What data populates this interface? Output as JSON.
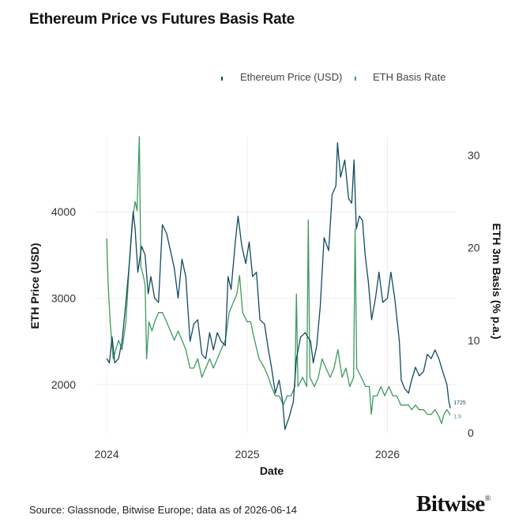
{
  "brand": {
    "name": "Bitwise",
    "mark": "®"
  },
  "source": "Source: Glassnode, Bitwise Europe; data as of 2026-06-14",
  "chart_data": {
    "type": "line",
    "title": "Ethereum Price vs Futures Basis Rate",
    "xlabel": "Date",
    "ylabel_left": "ETH Price (USD)",
    "ylabel_right": "ETH 3m Basis (% p.a.)",
    "x_ticks": [
      "2024",
      "2025",
      "2026"
    ],
    "y_left_ticks": [
      2000,
      3000,
      4000
    ],
    "y_right_ticks": [
      0,
      10,
      20,
      30
    ],
    "y_left_range": [
      1440,
      4870
    ],
    "y_right_range": [
      0,
      32
    ],
    "x_range": [
      "2023-12-01",
      "2026-06-30"
    ],
    "grid": true,
    "legend_position": "top-right",
    "series": [
      {
        "name": "Ethereum Price (USD)",
        "axis": "left",
        "color": "#124a5e",
        "end_label": "1725",
        "points": [
          [
            "2024-01-01",
            2300
          ],
          [
            "2024-01-08",
            2250
          ],
          [
            "2024-01-15",
            2550
          ],
          [
            "2024-01-22",
            2250
          ],
          [
            "2024-02-01",
            2300
          ],
          [
            "2024-02-10",
            2500
          ],
          [
            "2024-02-20",
            2950
          ],
          [
            "2024-03-01",
            3450
          ],
          [
            "2024-03-10",
            4000
          ],
          [
            "2024-03-15",
            3800
          ],
          [
            "2024-03-22",
            3300
          ],
          [
            "2024-04-01",
            3600
          ],
          [
            "2024-04-10",
            3500
          ],
          [
            "2024-04-18",
            3050
          ],
          [
            "2024-04-25",
            3250
          ],
          [
            "2024-05-05",
            3000
          ],
          [
            "2024-05-15",
            2950
          ],
          [
            "2024-05-25",
            3850
          ],
          [
            "2024-06-05",
            3750
          ],
          [
            "2024-06-15",
            3550
          ],
          [
            "2024-06-25",
            3350
          ],
          [
            "2024-07-05",
            3000
          ],
          [
            "2024-07-15",
            3450
          ],
          [
            "2024-07-25",
            3250
          ],
          [
            "2024-08-05",
            2500
          ],
          [
            "2024-08-15",
            2700
          ],
          [
            "2024-08-25",
            2750
          ],
          [
            "2024-09-05",
            2350
          ],
          [
            "2024-09-15",
            2300
          ],
          [
            "2024-09-25",
            2600
          ],
          [
            "2024-10-05",
            2400
          ],
          [
            "2024-10-15",
            2600
          ],
          [
            "2024-10-25",
            2500
          ],
          [
            "2024-11-05",
            2450
          ],
          [
            "2024-11-12",
            3250
          ],
          [
            "2024-11-20",
            3100
          ],
          [
            "2024-12-01",
            3650
          ],
          [
            "2024-12-08",
            3950
          ],
          [
            "2024-12-18",
            3600
          ],
          [
            "2024-12-28",
            3400
          ],
          [
            "2025-01-06",
            3650
          ],
          [
            "2025-01-15",
            3250
          ],
          [
            "2025-01-25",
            3300
          ],
          [
            "2025-02-03",
            2750
          ],
          [
            "2025-02-15",
            2700
          ],
          [
            "2025-02-25",
            2400
          ],
          [
            "2025-03-05",
            2200
          ],
          [
            "2025-03-15",
            1900
          ],
          [
            "2025-03-25",
            2050
          ],
          [
            "2025-04-03",
            1800
          ],
          [
            "2025-04-09",
            1480
          ],
          [
            "2025-04-20",
            1620
          ],
          [
            "2025-05-01",
            1800
          ],
          [
            "2025-05-09",
            2300
          ],
          [
            "2025-05-20",
            2550
          ],
          [
            "2025-06-01",
            2600
          ],
          [
            "2025-06-15",
            2500
          ],
          [
            "2025-06-22",
            2250
          ],
          [
            "2025-07-01",
            2450
          ],
          [
            "2025-07-10",
            2900
          ],
          [
            "2025-07-20",
            3700
          ],
          [
            "2025-08-01",
            3550
          ],
          [
            "2025-08-10",
            4200
          ],
          [
            "2025-08-20",
            4300
          ],
          [
            "2025-08-24",
            4800
          ],
          [
            "2025-09-01",
            4400
          ],
          [
            "2025-09-12",
            4600
          ],
          [
            "2025-09-22",
            4150
          ],
          [
            "2025-09-30",
            4100
          ],
          [
            "2025-10-06",
            4600
          ],
          [
            "2025-10-12",
            3800
          ],
          [
            "2025-10-20",
            3950
          ],
          [
            "2025-10-28",
            3900
          ],
          [
            "2025-11-04",
            3500
          ],
          [
            "2025-11-12",
            3200
          ],
          [
            "2025-11-21",
            2750
          ],
          [
            "2025-12-01",
            3000
          ],
          [
            "2025-12-10",
            3300
          ],
          [
            "2025-12-20",
            2950
          ],
          [
            "2026-01-01",
            3000
          ],
          [
            "2026-01-10",
            3300
          ],
          [
            "2026-01-20",
            3000
          ],
          [
            "2026-02-01",
            2500
          ],
          [
            "2026-02-06",
            2050
          ],
          [
            "2026-02-15",
            1950
          ],
          [
            "2026-02-25",
            1900
          ],
          [
            "2026-03-05",
            2050
          ],
          [
            "2026-03-15",
            2200
          ],
          [
            "2026-03-25",
            2100
          ],
          [
            "2026-04-05",
            2150
          ],
          [
            "2026-04-15",
            2350
          ],
          [
            "2026-04-25",
            2300
          ],
          [
            "2026-05-05",
            2400
          ],
          [
            "2026-05-15",
            2300
          ],
          [
            "2026-05-25",
            2150
          ],
          [
            "2026-06-05",
            2000
          ],
          [
            "2026-06-10",
            1800
          ],
          [
            "2026-06-14",
            1725
          ]
        ]
      },
      {
        "name": "ETH Basis Rate",
        "axis": "right",
        "color": "#3e9a5c",
        "end_label": "1.9",
        "points": [
          [
            "2024-01-01",
            21
          ],
          [
            "2024-01-05",
            16
          ],
          [
            "2024-01-10",
            12
          ],
          [
            "2024-01-18",
            8
          ],
          [
            "2024-01-25",
            9
          ],
          [
            "2024-02-01",
            10
          ],
          [
            "2024-02-10",
            9
          ],
          [
            "2024-02-20",
            12
          ],
          [
            "2024-03-01",
            19
          ],
          [
            "2024-03-08",
            23
          ],
          [
            "2024-03-15",
            25
          ],
          [
            "2024-03-20",
            24
          ],
          [
            "2024-03-26",
            32
          ],
          [
            "2024-03-30",
            18
          ],
          [
            "2024-04-05",
            17
          ],
          [
            "2024-04-10",
            16
          ],
          [
            "2024-04-14",
            8
          ],
          [
            "2024-04-20",
            12
          ],
          [
            "2024-04-28",
            11
          ],
          [
            "2024-05-05",
            12
          ],
          [
            "2024-05-15",
            13
          ],
          [
            "2024-05-25",
            13
          ],
          [
            "2024-06-05",
            12
          ],
          [
            "2024-06-15",
            11
          ],
          [
            "2024-06-25",
            10
          ],
          [
            "2024-07-05",
            11
          ],
          [
            "2024-07-15",
            10
          ],
          [
            "2024-07-25",
            9
          ],
          [
            "2024-08-05",
            7
          ],
          [
            "2024-08-15",
            7
          ],
          [
            "2024-08-25",
            8
          ],
          [
            "2024-09-05",
            6
          ],
          [
            "2024-09-15",
            7
          ],
          [
            "2024-09-25",
            8
          ],
          [
            "2024-10-05",
            7
          ],
          [
            "2024-10-15",
            8
          ],
          [
            "2024-10-25",
            9
          ],
          [
            "2024-11-05",
            10
          ],
          [
            "2024-11-15",
            13
          ],
          [
            "2024-11-25",
            14
          ],
          [
            "2024-12-05",
            15
          ],
          [
            "2024-12-12",
            17
          ],
          [
            "2024-12-20",
            13
          ],
          [
            "2025-01-01",
            12
          ],
          [
            "2025-01-10",
            12
          ],
          [
            "2025-01-20",
            10
          ],
          [
            "2025-02-01",
            8
          ],
          [
            "2025-02-15",
            7
          ],
          [
            "2025-02-25",
            6
          ],
          [
            "2025-03-05",
            5
          ],
          [
            "2025-03-15",
            4
          ],
          [
            "2025-03-25",
            4
          ],
          [
            "2025-04-05",
            3
          ],
          [
            "2025-04-15",
            4
          ],
          [
            "2025-04-25",
            4
          ],
          [
            "2025-05-05",
            5
          ],
          [
            "2025-05-09",
            15
          ],
          [
            "2025-05-13",
            5
          ],
          [
            "2025-05-25",
            6
          ],
          [
            "2025-06-05",
            5
          ],
          [
            "2025-06-09",
            23
          ],
          [
            "2025-06-13",
            6
          ],
          [
            "2025-06-25",
            5
          ],
          [
            "2025-07-05",
            6
          ],
          [
            "2025-07-15",
            8
          ],
          [
            "2025-07-25",
            7
          ],
          [
            "2025-08-05",
            6
          ],
          [
            "2025-08-15",
            7
          ],
          [
            "2025-08-25",
            9
          ],
          [
            "2025-09-05",
            6
          ],
          [
            "2025-09-15",
            7
          ],
          [
            "2025-09-25",
            5
          ],
          [
            "2025-10-05",
            6
          ],
          [
            "2025-10-09",
            22
          ],
          [
            "2025-10-13",
            7
          ],
          [
            "2025-10-25",
            6
          ],
          [
            "2025-11-05",
            5
          ],
          [
            "2025-11-15",
            5
          ],
          [
            "2025-11-20",
            2
          ],
          [
            "2025-11-25",
            4
          ],
          [
            "2025-12-05",
            4
          ],
          [
            "2025-12-15",
            5
          ],
          [
            "2025-12-25",
            4
          ],
          [
            "2026-01-05",
            5
          ],
          [
            "2026-01-15",
            4
          ],
          [
            "2026-01-25",
            4
          ],
          [
            "2026-02-05",
            3
          ],
          [
            "2026-02-15",
            3
          ],
          [
            "2026-02-25",
            3
          ],
          [
            "2026-03-05",
            2.5
          ],
          [
            "2026-03-15",
            3
          ],
          [
            "2026-03-25",
            2.5
          ],
          [
            "2026-04-05",
            2.5
          ],
          [
            "2026-04-15",
            2
          ],
          [
            "2026-04-25",
            2
          ],
          [
            "2026-05-05",
            2.5
          ],
          [
            "2026-05-15",
            1.8
          ],
          [
            "2026-05-22",
            1
          ],
          [
            "2026-05-28",
            2
          ],
          [
            "2026-06-05",
            2.5
          ],
          [
            "2026-06-14",
            1.9
          ]
        ]
      }
    ]
  }
}
